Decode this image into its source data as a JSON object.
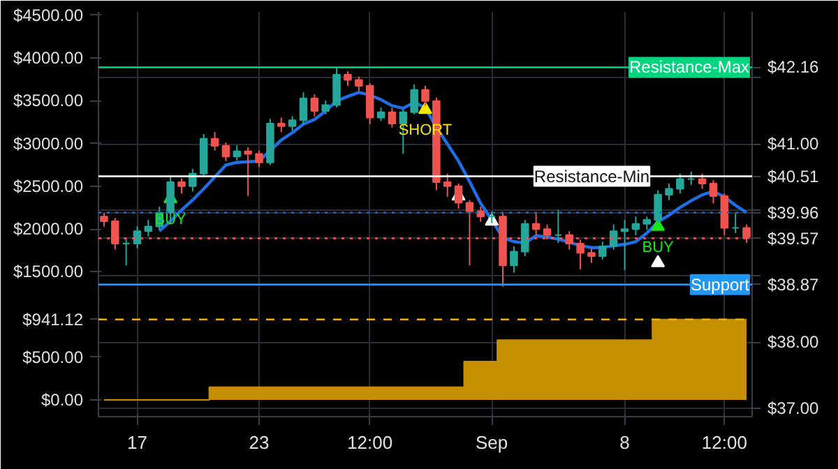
{
  "chart_data": {
    "type": "candlestick",
    "categories": [
      null,
      null,
      null,
      "17",
      null,
      null,
      null,
      null,
      null,
      null,
      null,
      null,
      null,
      null,
      "23",
      null,
      null,
      null,
      null,
      null,
      null,
      null,
      null,
      null,
      "12:00",
      null,
      null,
      null,
      null,
      null,
      null,
      null,
      null,
      null,
      null,
      "Sep",
      null,
      null,
      null,
      null,
      null,
      null,
      null,
      null,
      null,
      null,
      null,
      "8",
      null,
      null,
      null,
      null,
      null,
      null,
      null,
      null,
      "12:00",
      null,
      null
    ],
    "series": [
      {
        "type": "area",
        "axis": "y",
        "color": "#c58f00",
        "values": [
          0,
          0,
          0,
          0,
          0,
          0,
          0,
          0,
          0,
          0,
          150,
          150,
          150,
          150,
          150,
          150,
          150,
          150,
          150,
          150,
          150,
          150,
          150,
          150,
          150,
          150,
          150,
          150,
          150,
          150,
          150,
          150,
          150,
          450,
          450,
          450,
          700,
          700,
          700,
          700,
          700,
          700,
          700,
          700,
          700,
          700,
          700,
          700,
          700,
          700,
          941.12,
          941.12,
          941.12,
          941.12,
          941.12,
          941.12,
          941.12,
          941.12,
          941.12
        ]
      },
      {
        "axis": "y2",
        "ohlc": [
          [
            39.9,
            39.95,
            39.75,
            39.83
          ],
          [
            39.83,
            39.88,
            39.4,
            39.49
          ],
          [
            39.49,
            39.58,
            39.16,
            39.49
          ],
          [
            39.49,
            39.75,
            39.42,
            39.68
          ],
          [
            39.68,
            39.85,
            39.6,
            39.75
          ],
          [
            39.75,
            40.05,
            39.7,
            39.96
          ],
          [
            39.96,
            40.5,
            39.79,
            40.42
          ],
          [
            40.42,
            40.48,
            40.25,
            40.36
          ],
          [
            40.36,
            40.62,
            40.28,
            40.55
          ],
          [
            40.55,
            41.15,
            40.5,
            41.08
          ],
          [
            41.08,
            41.18,
            40.9,
            40.97
          ],
          [
            40.97,
            41.02,
            40.74,
            40.81
          ],
          [
            40.81,
            40.98,
            40.75,
            40.89
          ],
          [
            40.89,
            40.95,
            40.21,
            40.85
          ],
          [
            40.85,
            40.9,
            40.65,
            40.72
          ],
          [
            40.72,
            41.38,
            40.68,
            41.31
          ],
          [
            41.31,
            41.4,
            41.18,
            41.27
          ],
          [
            41.27,
            41.42,
            41.2,
            41.36
          ],
          [
            41.36,
            41.78,
            41.3,
            41.69
          ],
          [
            41.69,
            41.75,
            41.42,
            41.5
          ],
          [
            41.5,
            41.66,
            41.45,
            41.59
          ],
          [
            41.59,
            42.16,
            41.55,
            42.05
          ],
          [
            42.05,
            42.1,
            41.88,
            41.97
          ],
          [
            41.97,
            42.02,
            41.8,
            41.88
          ],
          [
            41.88,
            41.92,
            41.3,
            41.4
          ],
          [
            41.4,
            41.55,
            41.35,
            41.48
          ],
          [
            41.48,
            41.55,
            41.25,
            41.31
          ],
          [
            41.31,
            41.52,
            40.85,
            41.48
          ],
          [
            41.48,
            41.9,
            41.45,
            41.82
          ],
          [
            41.82,
            41.88,
            41.58,
            41.65
          ],
          [
            41.65,
            41.7,
            40.3,
            40.42
          ],
          [
            40.42,
            40.55,
            40.2,
            40.36
          ],
          [
            40.36,
            40.4,
            40.02,
            40.11
          ],
          [
            40.11,
            40.15,
            39.16,
            39.98
          ],
          [
            39.98,
            40.05,
            39.82,
            39.9
          ],
          [
            39.9,
            39.98,
            39.8,
            39.9
          ],
          [
            39.9,
            39.95,
            38.84,
            39.16
          ],
          [
            39.16,
            39.45,
            39.05,
            39.37
          ],
          [
            39.37,
            39.85,
            39.3,
            39.79
          ],
          [
            39.79,
            39.95,
            39.62,
            39.71
          ],
          [
            39.71,
            39.78,
            39.55,
            39.62
          ],
          [
            39.62,
            40.0,
            39.5,
            39.62
          ],
          [
            39.62,
            39.68,
            39.4,
            39.49
          ],
          [
            39.49,
            39.55,
            39.1,
            39.35
          ],
          [
            39.35,
            39.42,
            39.2,
            39.3
          ],
          [
            39.3,
            39.52,
            39.25,
            39.45
          ],
          [
            39.45,
            39.78,
            39.4,
            39.68
          ],
          [
            39.68,
            39.85,
            39.09,
            39.71
          ],
          [
            39.71,
            39.9,
            39.62,
            39.79
          ],
          [
            39.79,
            39.9,
            39.7,
            39.85
          ],
          [
            39.85,
            40.3,
            39.8,
            40.23
          ],
          [
            40.23,
            40.4,
            40.15,
            40.32
          ],
          [
            40.32,
            40.55,
            40.25,
            40.47
          ],
          [
            40.47,
            40.58,
            40.38,
            40.47
          ],
          [
            40.47,
            40.55,
            40.32,
            40.4
          ],
          [
            40.4,
            40.45,
            40.1,
            40.21
          ],
          [
            40.21,
            40.25,
            39.62,
            39.73
          ],
          [
            39.73,
            39.95,
            39.65,
            39.73
          ],
          [
            39.73,
            39.78,
            39.5,
            39.57
          ]
        ],
        "colors": [
          "#ef5350",
          "#ef5350",
          "#26a69a",
          "#26a69a",
          "#26a69a",
          "#26a69a",
          "#26a69a",
          "#ef5350",
          "#26a69a",
          "#26a69a",
          "#ef5350",
          "#ef5350",
          "#26a69a",
          "#ef5350",
          "#ef5350",
          "#26a69a",
          "#ef5350",
          "#26a69a",
          "#26a69a",
          "#ef5350",
          "#26a69a",
          "#26a69a",
          "#ef5350",
          "#ef5350",
          "#ef5350",
          "#26a69a",
          "#ef5350",
          "#26a69a",
          "#26a69a",
          "#ef5350",
          "#ef5350",
          "#ef5350",
          "#ef5350",
          "#ef5350",
          "#ef5350",
          "#26a69a",
          "#ef5350",
          "#26a69a",
          "#26a69a",
          "#ef5350",
          "#ef5350",
          "#26a69a",
          "#ef5350",
          "#ef5350",
          "#ef5350",
          "#26a69a",
          "#26a69a",
          "#26a69a",
          "#26a69a",
          "#26a69a",
          "#26a69a",
          "#26a69a",
          "#26a69a",
          "#26a69a",
          "#ef5350",
          "#ef5350",
          "#ef5350",
          "#26a69a",
          "#ef5350"
        ]
      },
      {
        "type": "line",
        "axis": "y2",
        "color": "#1e6fe6",
        "values": [
          null,
          null,
          null,
          null,
          null,
          39.68,
          39.83,
          40.0,
          40.15,
          40.32,
          40.5,
          40.68,
          40.72,
          40.73,
          40.74,
          40.9,
          41.06,
          41.17,
          41.3,
          41.37,
          41.5,
          41.65,
          41.72,
          41.78,
          41.74,
          41.67,
          41.58,
          41.54,
          41.63,
          41.55,
          41.25,
          41.0,
          40.74,
          40.43,
          40.1,
          39.85,
          39.58,
          39.52,
          39.5,
          39.61,
          39.59,
          39.56,
          39.51,
          39.46,
          39.43,
          39.43,
          39.46,
          39.48,
          39.52,
          39.65,
          39.82,
          39.92,
          40.04,
          40.14,
          40.23,
          40.28,
          40.2,
          40.07,
          39.96
        ]
      },
      {
        "type": "scatter",
        "axis": "y2",
        "marker": "triangle",
        "colors": [
          null,
          null,
          null,
          null,
          null,
          null,
          "#19e619",
          null,
          null,
          null,
          null,
          null,
          null,
          null,
          null,
          null,
          null,
          null,
          null,
          null,
          null,
          null,
          null,
          null,
          null,
          null,
          null,
          null,
          null,
          "#f5e600",
          null,
          null,
          null,
          null,
          null,
          null,
          null,
          null,
          null,
          null,
          null,
          null,
          null,
          null,
          null,
          null,
          null,
          null,
          null,
          null,
          "#19e619",
          null,
          null,
          null,
          null,
          null,
          null,
          null,
          null
        ],
        "values": [
          null,
          null,
          null,
          null,
          null,
          null,
          40.17,
          null,
          null,
          null,
          null,
          null,
          null,
          null,
          null,
          null,
          null,
          null,
          null,
          null,
          null,
          null,
          null,
          null,
          null,
          null,
          null,
          null,
          null,
          41.52,
          null,
          null,
          null,
          null,
          null,
          null,
          null,
          null,
          null,
          null,
          null,
          null,
          null,
          null,
          null,
          null,
          null,
          null,
          null,
          null,
          39.75,
          null,
          null,
          null,
          null,
          null,
          null,
          null,
          null
        ],
        "value_labels": [
          null,
          null,
          null,
          null,
          null,
          null,
          "BUY",
          null,
          null,
          null,
          null,
          null,
          null,
          null,
          null,
          null,
          null,
          null,
          null,
          null,
          null,
          null,
          null,
          null,
          null,
          null,
          null,
          null,
          null,
          "SHORT",
          null,
          null,
          null,
          null,
          null,
          null,
          null,
          null,
          null,
          null,
          null,
          null,
          null,
          null,
          null,
          null,
          null,
          null,
          null,
          null,
          "BUY",
          null,
          null,
          null,
          null,
          null,
          null,
          null,
          null
        ]
      },
      {
        "type": "scatter",
        "axis": "y2",
        "marker": "triangle",
        "color": "#ffffff",
        "values": [
          null,
          null,
          null,
          null,
          null,
          null,
          null,
          null,
          null,
          null,
          null,
          null,
          null,
          null,
          null,
          null,
          null,
          null,
          null,
          null,
          null,
          null,
          null,
          null,
          null,
          null,
          null,
          null,
          null,
          null,
          null,
          null,
          40.21,
          null,
          null,
          39.83,
          null,
          null,
          null,
          null,
          null,
          null,
          null,
          null,
          null,
          null,
          null,
          null,
          null,
          null,
          39.2,
          null,
          null,
          null,
          null,
          null,
          null,
          null,
          null
        ]
      }
    ],
    "ylim": [
      -196,
      4540
    ],
    "yticks": [
      {
        "value": 0,
        "label": "$0.00"
      },
      {
        "value": 500,
        "label": "$500.00"
      },
      {
        "value": 941.12,
        "label": "$941.12"
      },
      {
        "value": 1500,
        "label": "$1500.00"
      },
      {
        "value": 2000,
        "label": "$2000.00"
      },
      {
        "value": 2500,
        "label": "$2500.00"
      },
      {
        "value": 3000,
        "label": "$3000.00"
      },
      {
        "value": 3500,
        "label": "$3500.00"
      },
      {
        "value": 4000,
        "label": "$4000.00"
      },
      {
        "value": 4500,
        "label": "$4500.00"
      }
    ],
    "y2lim": [
      36.87,
      43.0
    ],
    "y2ticks": [
      {
        "value": 37,
        "label": "$37.00"
      },
      {
        "value": 38,
        "label": "$38.00"
      },
      {
        "value": 38.87,
        "label": "$38.87"
      },
      {
        "value": 39,
        "label": null
      },
      {
        "value": 39.57,
        "label": "$39.57"
      },
      {
        "value": 39.96,
        "label": "$39.96"
      },
      {
        "value": 40,
        "label": null
      },
      {
        "value": 40.51,
        "label": "$40.51"
      },
      {
        "value": 41,
        "label": "$41.00"
      },
      {
        "value": 42,
        "label": null
      },
      {
        "value": 42.16,
        "label": "$42.16"
      }
    ],
    "ref_lines": [
      {
        "axis": "y2",
        "value": 42.16,
        "label": "Resistance-Max",
        "color": "#00d47e",
        "line_style": "solid"
      },
      {
        "axis": "y2",
        "value": 40.51,
        "label": "Resistance-Min",
        "color": "#ffffff",
        "line_style": "solid"
      },
      {
        "axis": "y2",
        "value": 39.96,
        "color": "#1565d8",
        "line_style": "dotted"
      },
      {
        "axis": "y2",
        "value": 39.57,
        "color": "#ff5252",
        "line_style": "dotted"
      },
      {
        "axis": "y2",
        "value": 38.87,
        "label": "Support",
        "color": "#2196f3",
        "line_style": "solid"
      },
      {
        "axis": "y",
        "value": 941.12,
        "color": "#f0b000",
        "line_style": "dashed"
      }
    ],
    "grid": true
  }
}
